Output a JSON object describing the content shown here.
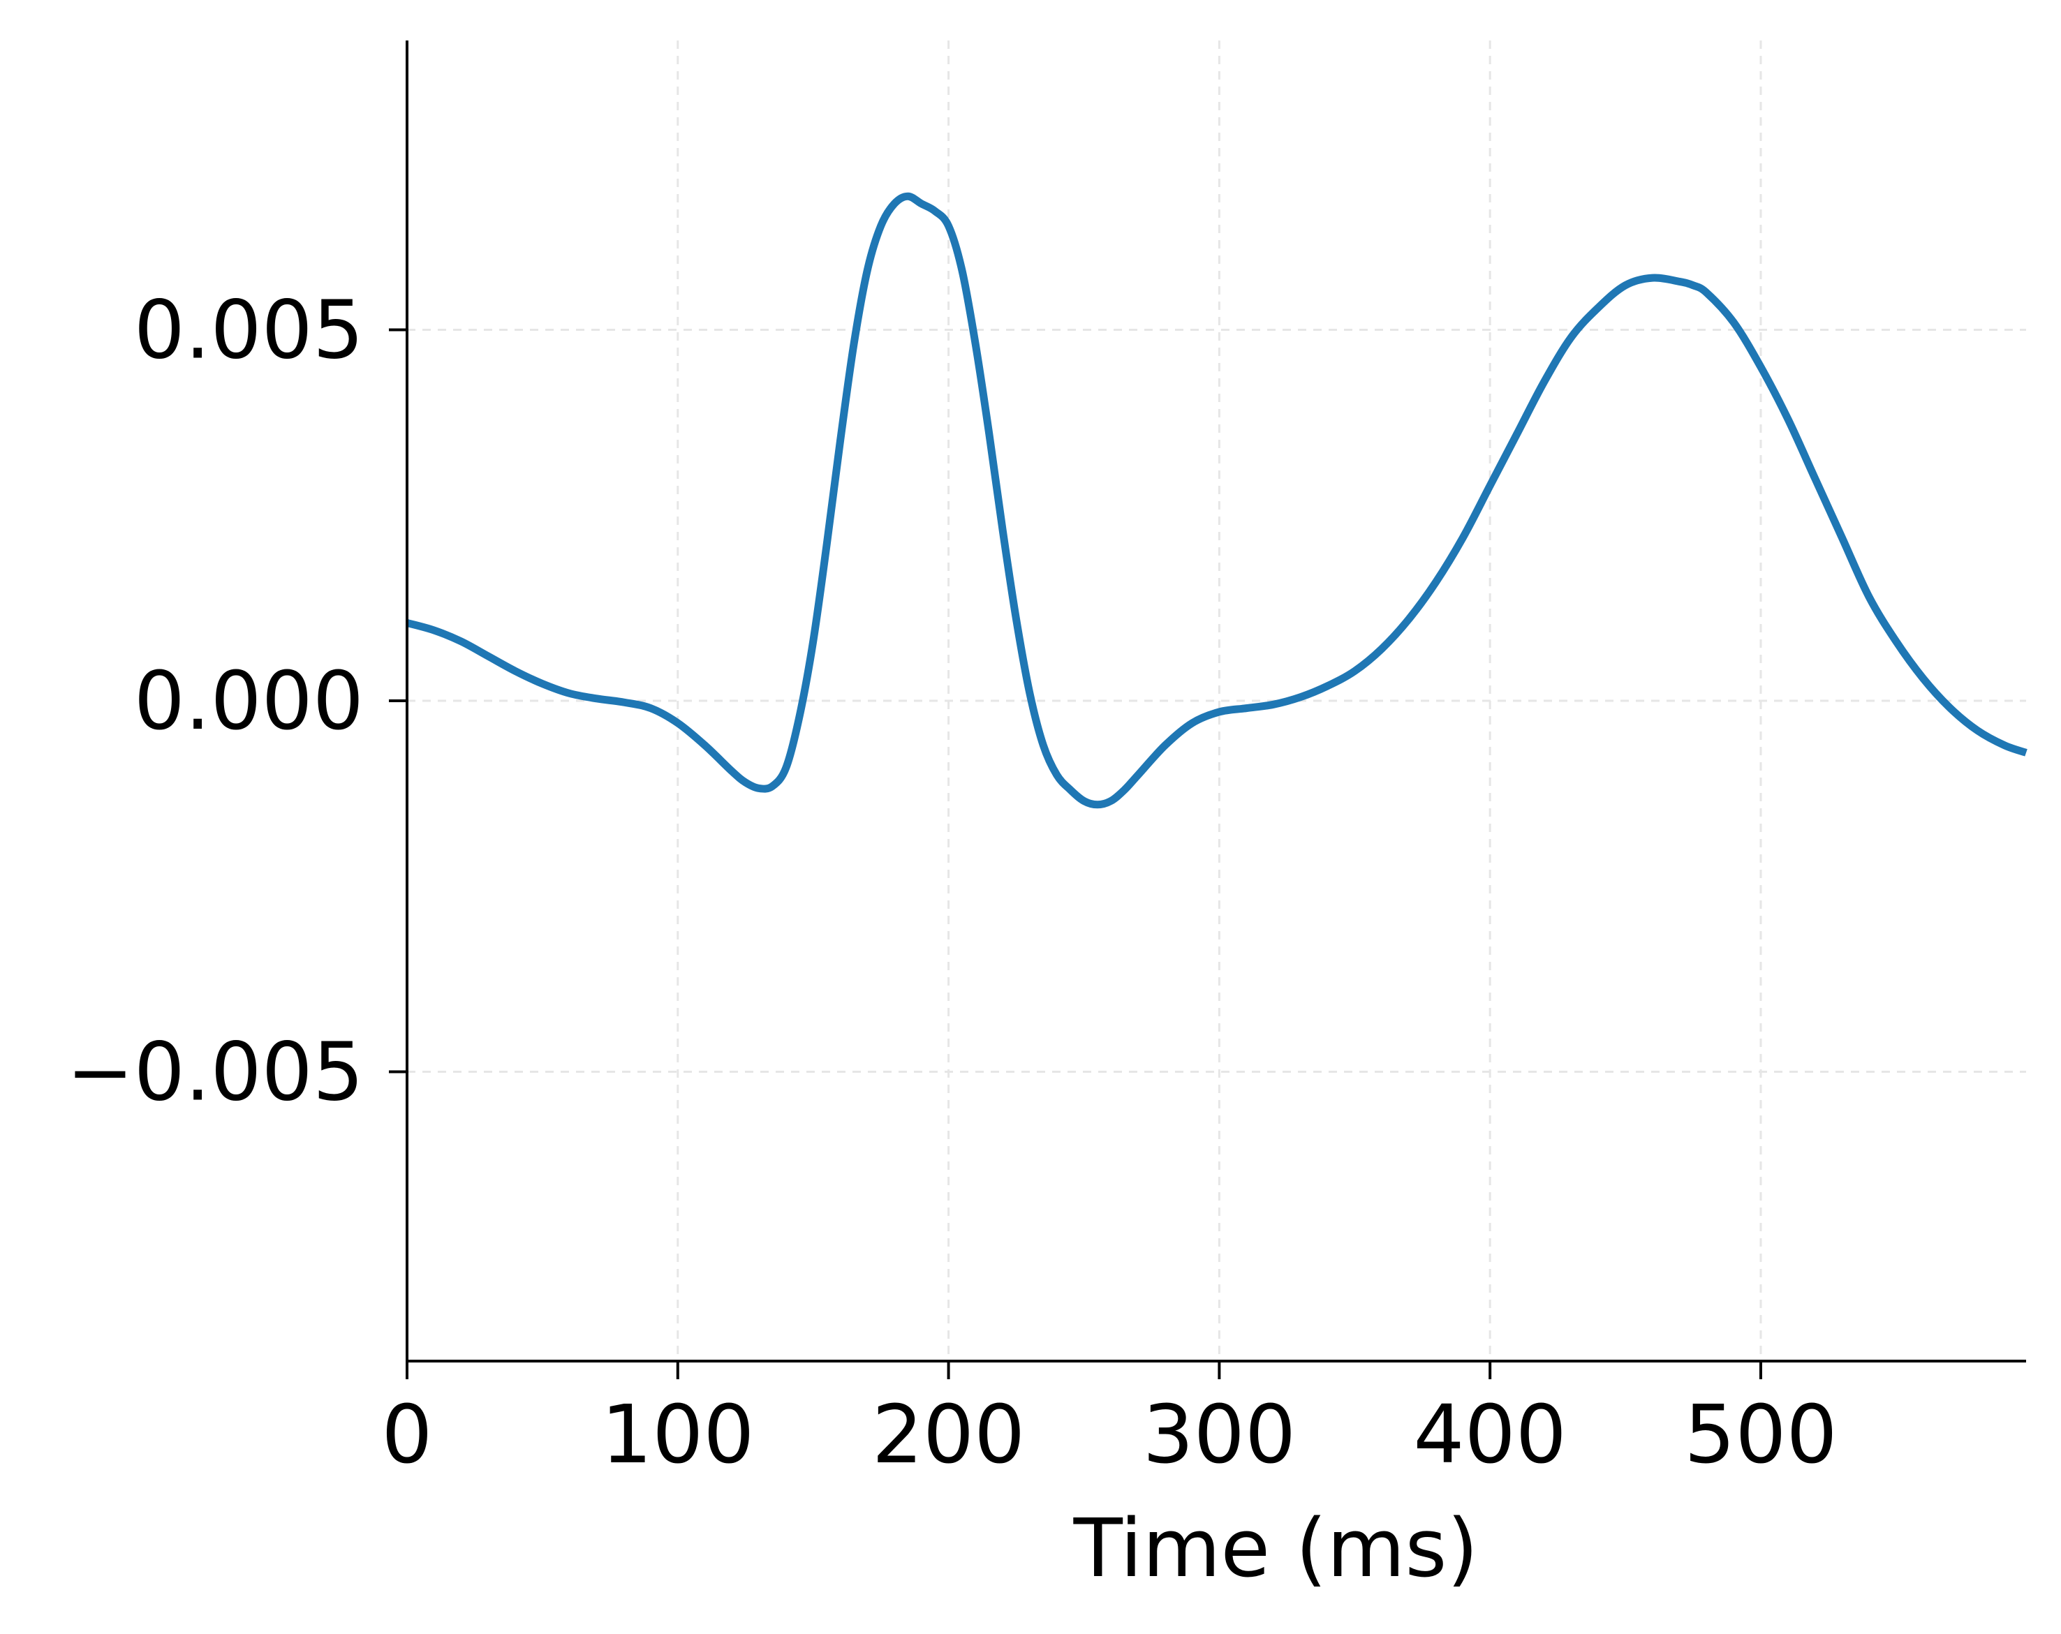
{
  "chart_data": {
    "type": "line",
    "title": "",
    "xlabel": "Time (ms)",
    "ylabel": "",
    "xlim": [
      0,
      598
    ],
    "ylim": [
      -0.0089,
      0.0089
    ],
    "xticks": [
      0,
      100,
      200,
      300,
      400,
      500
    ],
    "xtick_labels": [
      "0",
      "100",
      "200",
      "300",
      "400",
      "500"
    ],
    "yticks": [
      -0.005,
      0.0,
      0.005
    ],
    "ytick_labels": [
      "−0.005",
      "0.000",
      "0.005"
    ],
    "grid": true,
    "legend": "none",
    "series": [
      {
        "color": "#1f77b4",
        "x": [
          0,
          10,
          20,
          30,
          40,
          50,
          60,
          70,
          80,
          90,
          100,
          110,
          120,
          125,
          130,
          135,
          140,
          145,
          150,
          155,
          160,
          165,
          170,
          175,
          180,
          185,
          190,
          195,
          200,
          205,
          210,
          215,
          220,
          225,
          230,
          235,
          240,
          245,
          250,
          255,
          260,
          265,
          270,
          280,
          290,
          300,
          310,
          320,
          330,
          340,
          350,
          360,
          370,
          380,
          390,
          400,
          410,
          420,
          430,
          440,
          450,
          460,
          470,
          475,
          480,
          490,
          500,
          510,
          520,
          530,
          540,
          550,
          560,
          570,
          580,
          590,
          598
        ],
        "y": [
          0.00105,
          0.00095,
          0.0008,
          0.0006,
          0.0004,
          0.00023,
          0.0001,
          3e-05,
          -2e-05,
          -0.0001,
          -0.0003,
          -0.0006,
          -0.00095,
          -0.0011,
          -0.00118,
          -0.00115,
          -0.0009,
          -0.0002,
          0.0008,
          0.0021,
          0.0035,
          0.0048,
          0.0058,
          0.0064,
          0.0067,
          0.0068,
          0.0067,
          0.0066,
          0.0064,
          0.0058,
          0.0048,
          0.0036,
          0.0023,
          0.0011,
          0.0001,
          -0.0006,
          -0.001,
          -0.0012,
          -0.00135,
          -0.0014,
          -0.00135,
          -0.0012,
          -0.001,
          -0.0006,
          -0.0003,
          -0.00015,
          -0.0001,
          -5e-05,
          5e-05,
          0.0002,
          0.0004,
          0.0007,
          0.0011,
          0.0016,
          0.0022,
          0.0029,
          0.0036,
          0.0043,
          0.0049,
          0.0053,
          0.0056,
          0.0057,
          0.00565,
          0.0056,
          0.0055,
          0.0051,
          0.0045,
          0.0038,
          0.003,
          0.0022,
          0.0014,
          0.0008,
          0.0003,
          -0.0001,
          -0.0004,
          -0.0006,
          -0.0007
        ]
      }
    ]
  }
}
